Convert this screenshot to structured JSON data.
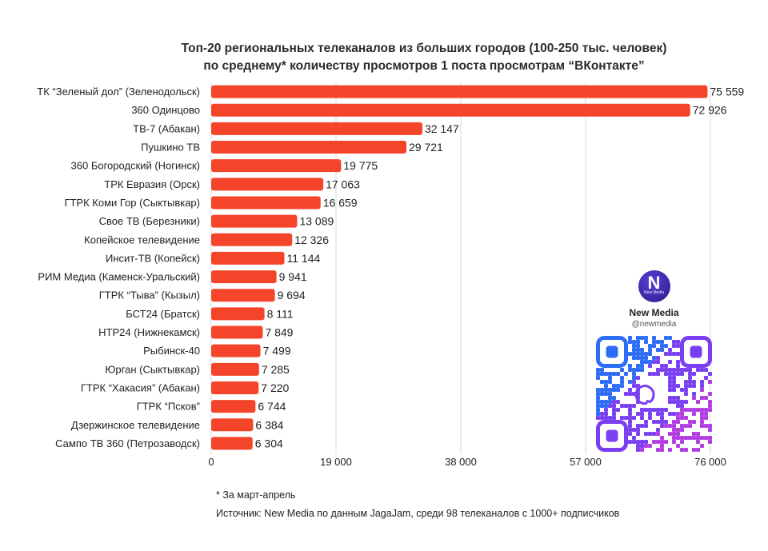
{
  "title": {
    "line1": "Топ-20 региональных телеканалов из больших городов (100-250 тыс. человек)",
    "line2": "по среднему* количеству просмотров 1 поста просмотрам “ВКонтакте”"
  },
  "chart_data": {
    "type": "bar",
    "orientation": "horizontal",
    "categories": [
      "ТК “Зеленый дол” (Зеленодольск)",
      "360 Одинцово",
      "ТВ-7 (Абакан)",
      "Пушкино ТВ",
      "360 Богородский (Ногинск)",
      "ТРК Евразия (Орск)",
      "ГТРК Коми Гор (Сыктывкар)",
      "Свое ТВ (Березники)",
      "Копейское телевидение",
      "Инсит-ТВ (Копейск)",
      "РИМ Медиа (Каменск-Уральский)",
      "ГТРК “Тыва” (Кызыл)",
      "БСТ24 (Братск)",
      "НТР24 (Нижнекамск)",
      "Рыбинск-40",
      "Юрган (Сыктывкар)",
      "ГТРК “Хакасия” (Абакан)",
      "ГТРК “Псков”",
      "Дзержинское телевидение",
      "Сампо ТВ 360 (Петрозаводск)"
    ],
    "values": [
      75559,
      72926,
      32147,
      29721,
      19775,
      17063,
      16659,
      13089,
      12326,
      11144,
      9941,
      9694,
      8111,
      7849,
      7499,
      7285,
      7220,
      6744,
      6384,
      6304
    ],
    "value_labels": [
      "75 559",
      "72 926",
      "32 147",
      "29 721",
      "19 775",
      "17 063",
      "16 659",
      "13 089",
      "12 326",
      "11 144",
      "9 941",
      "9 694",
      "8 111",
      "7 849",
      "7 499",
      "7 285",
      "7 220",
      "6 744",
      "6 384",
      "6 304"
    ],
    "xlim": [
      0,
      76000
    ],
    "xticks": [
      0,
      19000,
      38000,
      57000,
      76000
    ],
    "xtick_labels": [
      "0",
      "19 000",
      "38 000",
      "57 000",
      "76 000"
    ],
    "grid": true,
    "bar_color": "#f4452b",
    "grid_color": "#d9d9d9"
  },
  "brand": {
    "logo_letter": "N",
    "logo_sub": "New Media",
    "name": "New Media",
    "handle": "@newmedia",
    "qr_icon": "qr-code-icon",
    "qr_colors": [
      "#2d6df6",
      "#7b3ff2",
      "#b23de0"
    ]
  },
  "footnote": "* За март-апрель",
  "source": "Источник: New Media по данным JagaJam, среди 98 телеканалов с 1000+ подписчиков"
}
